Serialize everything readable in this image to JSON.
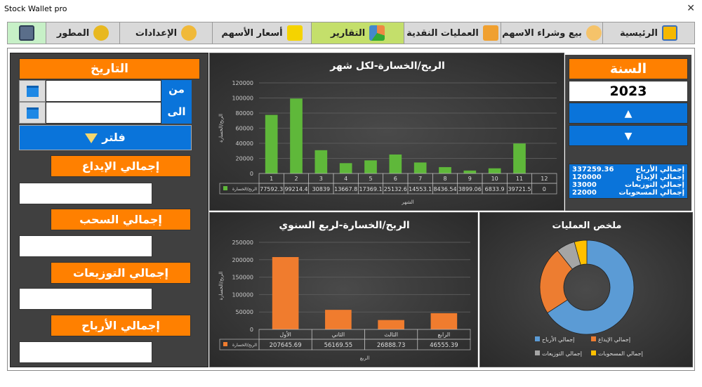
{
  "window": {
    "title": "Stock Wallet pro",
    "close": "✕"
  },
  "toolbar": [
    {
      "label": "",
      "icon": "save-icon"
    },
    {
      "label": "المطور",
      "icon": "developer-icon"
    },
    {
      "label": "الإعدادات",
      "icon": "settings-icon"
    },
    {
      "label": "أسعار الأسهم",
      "icon": "price-icon"
    },
    {
      "label": "التقارير",
      "icon": "reports-icon",
      "active": true
    },
    {
      "label": "العمليات النقدية",
      "icon": "wallet-icon"
    },
    {
      "label": "بيع وشراء الاسهم",
      "icon": "trade-icon"
    },
    {
      "label": "الرئيسية",
      "icon": "home-icon"
    }
  ],
  "filter": {
    "date_title": "التاريخ",
    "from_label": "من",
    "to_label": "الى",
    "from_value": "",
    "to_value": "",
    "filter_button": "فلتر"
  },
  "totals": [
    {
      "label": "إجمالي الإيداع",
      "value": ""
    },
    {
      "label": "إجمالي السحب",
      "value": ""
    },
    {
      "label": "إجمالي التوزيعات",
      "value": ""
    },
    {
      "label": "إجمالي الأرباح",
      "value": ""
    }
  ],
  "year": {
    "title": "السنة",
    "value": "2023",
    "up": "▲",
    "down": "▼"
  },
  "summary": [
    {
      "label": "إجمالي الأرباح",
      "value": "337259.36"
    },
    {
      "label": "إجمالي الإيداع",
      "value": "120000"
    },
    {
      "label": "إجمالي التوزيعات",
      "value": "33000"
    },
    {
      "label": "إجمالي المسحوبات",
      "value": "22000"
    }
  ],
  "chart_data": [
    {
      "type": "bar",
      "title": "الربح/الخسارة-لكل شهر",
      "xlabel": "الشهر",
      "ylabel": "الربح/الخسارة",
      "ylim": [
        0,
        120000
      ],
      "yticks": [
        "0",
        "20000",
        "40000",
        "60000",
        "80000",
        "100000",
        "120000"
      ],
      "categories": [
        "1",
        "2",
        "3",
        "4",
        "5",
        "6",
        "7",
        "8",
        "9",
        "10",
        "11",
        "12"
      ],
      "series": [
        {
          "name": "الربح/الخسارة",
          "values": [
            77592.3,
            99214.4,
            30839,
            13667.8,
            17369.1,
            25132.6,
            14553.1,
            8436.54,
            3899.06,
            6833.9,
            39721.5,
            0
          ],
          "labels": [
            "77592.3",
            "99214.4",
            "30839",
            "13667.8",
            "17369.1",
            "25132.6",
            "14553.1",
            "8436.54",
            "3899.06",
            "6833.9",
            "39721.5",
            "0"
          ]
        }
      ],
      "color": "#5fb83a",
      "grid": true,
      "legend": "data-table"
    },
    {
      "type": "bar",
      "title": "الربح/الخسارة-لربع السنوي",
      "xlabel": "الربع",
      "ylabel": "الربح/الخسارة",
      "ylim": [
        0,
        250000
      ],
      "yticks": [
        "0",
        "50000",
        "100000",
        "150000",
        "200000",
        "250000"
      ],
      "categories": [
        "الأول",
        "الثاني",
        "الثالث",
        "الرابع"
      ],
      "series": [
        {
          "name": "الربح/الخسارة",
          "values": [
            207645.69,
            56169.55,
            26888.73,
            46555.39
          ],
          "labels": [
            "207645.69",
            "56169.55",
            "26888.73",
            "46555.39"
          ]
        }
      ],
      "color": "#f07c2e",
      "grid": true,
      "legend": "data-table"
    },
    {
      "type": "pie",
      "title": "ملخص العمليات",
      "donut": true,
      "legend": "bottom",
      "categories": [
        "إجمالي الأرباح",
        "إجمالي الإيداع",
        "إجمالي التوزيعات",
        "إجمالي المسحوبات"
      ],
      "values": [
        337259.36,
        120000,
        33000,
        22000
      ],
      "colors": [
        "#5b9bd5",
        "#ed7d31",
        "#a5a5a5",
        "#ffc000"
      ]
    }
  ]
}
